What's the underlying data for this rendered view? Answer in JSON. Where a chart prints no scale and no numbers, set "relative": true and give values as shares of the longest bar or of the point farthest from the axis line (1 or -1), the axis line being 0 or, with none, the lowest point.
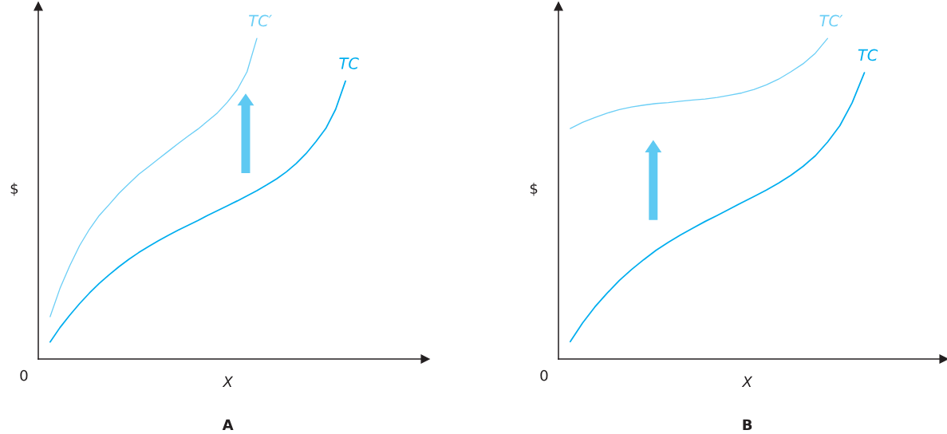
{
  "chart_data": [
    {
      "type": "line",
      "title": "A",
      "xlabel": "X",
      "ylabel": "$",
      "relative": true,
      "line_style": "solid",
      "annotations": [
        "0"
      ],
      "categories": [
        null,
        null,
        null,
        null,
        null,
        null,
        null,
        null,
        null,
        null,
        null,
        null,
        null,
        null,
        null,
        null,
        null,
        null,
        null,
        null,
        null,
        null,
        null,
        null,
        null,
        null,
        null,
        null,
        null,
        null,
        null
      ],
      "series": [
        {
          "name": "TC",
          "color": "#00aeef",
          "values": [
            0.053,
            0.098,
            0.137,
            0.173,
            0.206,
            0.236,
            0.263,
            0.288,
            0.311,
            0.332,
            0.351,
            0.369,
            0.386,
            0.402,
            0.417,
            0.432,
            0.448,
            0.463,
            0.478,
            0.493,
            0.509,
            0.525,
            0.543,
            0.562,
            0.584,
            0.61,
            0.641,
            0.678,
            0.719,
            0.779,
            0.867
          ]
        },
        {
          "name": "TC′",
          "color": "#6dcff6",
          "values": [
            0.132,
            0.22,
            0.291,
            0.354,
            0.405,
            0.448,
            0.482,
            0.517,
            0.547,
            0.576,
            0.6,
            0.624,
            0.648,
            0.672,
            0.695,
            0.717,
            0.742,
            0.768,
            0.801,
            0.84,
            0.896,
            1,
            null,
            null,
            null,
            null,
            null,
            null,
            null,
            null,
            null
          ]
        }
      ]
    },
    {
      "type": "line",
      "title": "B",
      "xlabel": "X",
      "ylabel": "$",
      "relative": true,
      "line_style": "solid",
      "annotations": [
        "0"
      ],
      "categories": [
        null,
        null,
        null,
        null,
        null,
        null,
        null,
        null,
        null,
        null,
        null,
        null,
        null,
        null,
        null,
        null,
        null,
        null,
        null,
        null,
        null,
        null,
        null,
        null,
        null
      ],
      "series": [
        {
          "name": "TC",
          "color": "#00aeef",
          "values": [
            0.054,
            0.112,
            0.162,
            0.205,
            0.245,
            0.279,
            0.31,
            0.339,
            0.364,
            0.387,
            0.408,
            0.429,
            0.448,
            0.468,
            0.488,
            0.507,
            0.527,
            0.549,
            0.573,
            0.601,
            0.634,
            0.677,
            0.728,
            0.799,
            0.893
          ]
        },
        {
          "name": "TC′",
          "color": "#6dcff6",
          "values": [
            0.719,
            0.738,
            0.753,
            0.767,
            0.778,
            0.786,
            0.792,
            0.797,
            0.8,
            0.804,
            0.808,
            0.811,
            0.816,
            0.823,
            0.83,
            0.841,
            0.855,
            0.873,
            0.896,
            0.921,
            0.954,
            1,
            null,
            null,
            null
          ]
        }
      ]
    }
  ]
}
